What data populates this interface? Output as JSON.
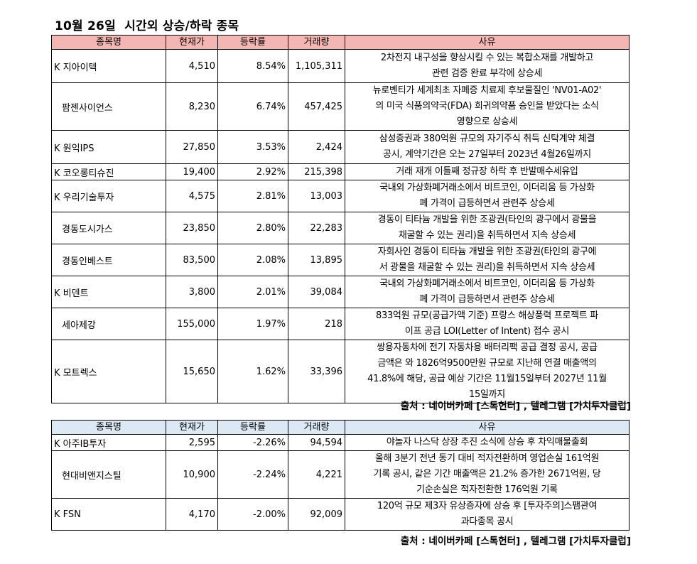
{
  "title": "10월 26일  시간외 상승/하락 종목",
  "headers": [
    "종목명",
    "현재가",
    "등락률",
    "거래량",
    "사유"
  ],
  "gainers": [
    {
      "name": "K 지아이텍",
      "price": "4,510",
      "change": "8.54%",
      "volume": "1,105,311",
      "reason": [
        "2차전지 내구성을 향상시킬 수 있는 복합소재를 개발하고",
        "관련 검증 완료 부각에 상승세"
      ]
    },
    {
      "name": "팜젠사이언스",
      "price": "8,230",
      "change": "6.74%",
      "volume": "457,425",
      "reason": [
        "뉴로벤티가 세계최초 자폐증 치료제 후보물질인 'NV01-A02'",
        "의 미국 식품의약국(FDA) 희귀의약품 승인을 받았다는 소식",
        "영향으로 상승세"
      ]
    },
    {
      "name": "K 원익IPS",
      "price": "27,850",
      "change": "3.53%",
      "volume": "2,424",
      "reason": [
        "삼성증권과 380억원 규모의 자기주식 취득 신탁계약 체결",
        "공시, 계약기간은 오는 27일부터 2023년 4월26일까지"
      ]
    },
    {
      "name": "K 코오롱티슈진",
      "price": "19,400",
      "change": "2.92%",
      "volume": "215,398",
      "reason": [
        "거래 재개 이틀째 정규장 하락 후 반발매수세유입"
      ]
    },
    {
      "name": "K 우리기술투자",
      "price": "4,575",
      "change": "2.81%",
      "volume": "13,003",
      "reason": [
        "국내외 가상화폐거래소에서 비트코인, 이더리움 등 가상화",
        "폐 가격이 급등하면서 관련주 상승세"
      ]
    },
    {
      "name": "경동도시가스",
      "price": "23,850",
      "change": "2.80%",
      "volume": "22,283",
      "reason": [
        "경동이 티타늄 개발을 위한 조광권(타인의 광구에서 광물을",
        "채굴할 수 있는 권리)을 취득하면서 지속 상승세"
      ]
    },
    {
      "name": "경동인베스트",
      "price": "83,500",
      "change": "2.08%",
      "volume": "13,895",
      "reason": [
        "자회사인 경동이 티타늄 개발을 위한 조광권(타인의 광구에",
        "서 광물을 채굴할 수 있는 권리)을 취득하면서 지속 상승세"
      ]
    },
    {
      "name": "K 비덴트",
      "price": "3,800",
      "change": "2.01%",
      "volume": "39,084",
      "reason": [
        "국내외 가상화폐거래소에서 비트코인, 이더리움 등 가상화",
        "폐 가격이 급등하면서 관련주 상승세"
      ]
    },
    {
      "name": "세아제강",
      "price": "155,000",
      "change": "1.97%",
      "volume": "218",
      "reason": [
        "833억원 규모(공급가액 기준) 프랑스 해상풍력 프로젝트 파",
        "이프 공급 LOI(Letter of Intent) 접수 공시"
      ]
    },
    {
      "name": "K 모트렉스",
      "price": "15,650",
      "change": "1.62%",
      "volume": "33,396",
      "reason": [
        "쌍용자동차에 전기 자동차용 배터리팩 공급 결정 공시, 공급",
        "금액은 와 1826억9500만원 규모로 지난해 연결 매출액의",
        "41.8%에 해당, 공급 예상 기간은 11월15일부터 2027년 11월",
        "15일까지"
      ]
    }
  ],
  "source_1": "출처 : 네이버카페 [스톡헌터] , 텔레그램 [가치투자클럽]",
  "losers": [
    {
      "name": "K 아주IB투자",
      "price": "2,595",
      "change": "-2.26%",
      "volume": "94,594",
      "reason": [
        "야놀자 나스닥 상장 추진 소식에 상승 후 차익매물출회"
      ]
    },
    {
      "name": "현대비앤지스틸",
      "price": "10,900",
      "change": "-2.24%",
      "volume": "4,221",
      "reason": [
        "올해 3분기 전년 동기 대비 적자전환하며 영업손실 161억원",
        "기록 공시, 같은 기간 매출액은 21.2% 증가한 2671억원, 당",
        "기순손실은 적자전환한 176억원 기록"
      ]
    },
    {
      "name": "K FSN",
      "price": "4,170",
      "change": "-2.00%",
      "volume": "92,009",
      "reason": [
        "120억 규모 제3자 유상증자에 상승 후 [투자주의]스팸관여",
        "과다종목 공시"
      ]
    }
  ],
  "source_2": "출처 : 네이버카페 [스톡헌터] , 텔레그램 [가치투자클럽]"
}
